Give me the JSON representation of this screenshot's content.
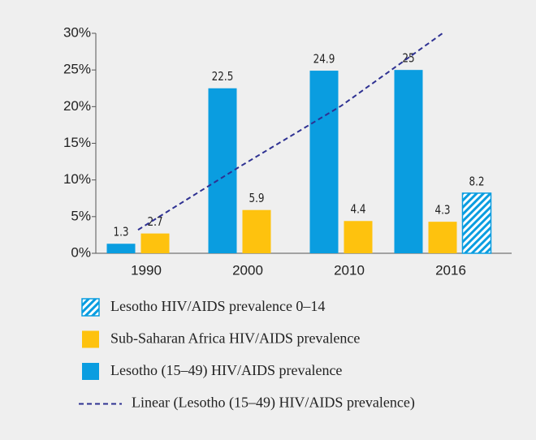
{
  "chart_data": {
    "type": "bar",
    "categories": [
      "1990",
      "2000",
      "2010",
      "2016"
    ],
    "series": [
      {
        "name": "Lesotho (15–49) HIV/AIDS prevalence",
        "color": "#0a9de0",
        "values": [
          1.3,
          22.5,
          24.9,
          25
        ]
      },
      {
        "name": "Sub-Saharan Africa HIV/AIDS prevalence",
        "color": "#fec20e",
        "values": [
          2.7,
          5.9,
          4.4,
          4.3
        ]
      },
      {
        "name": "Lesotho HIV/AIDS prevalence 0–14",
        "color": "#0a9de0",
        "hatch": true,
        "values": [
          null,
          null,
          null,
          8.2
        ]
      },
      {
        "name": "Linear  (Lesotho (15–49) HIV/AIDS prevalence)",
        "color": "#2e3192",
        "kind": "trendline",
        "values": [
          3.2,
          11.8,
          20.1,
          30
        ]
      }
    ],
    "legend_order": [
      2,
      1,
      0,
      3
    ],
    "ylim": [
      0,
      30
    ],
    "yticks": [
      {
        "value": 0,
        "label": "0%"
      },
      {
        "value": 5,
        "label": "5%"
      },
      {
        "value": 10,
        "label": "10%"
      },
      {
        "value": 15,
        "label": "15%"
      },
      {
        "value": 20,
        "label": "20%"
      },
      {
        "value": 25,
        "label": "25%"
      },
      {
        "value": 30,
        "label": "30%"
      }
    ],
    "grid": false
  }
}
